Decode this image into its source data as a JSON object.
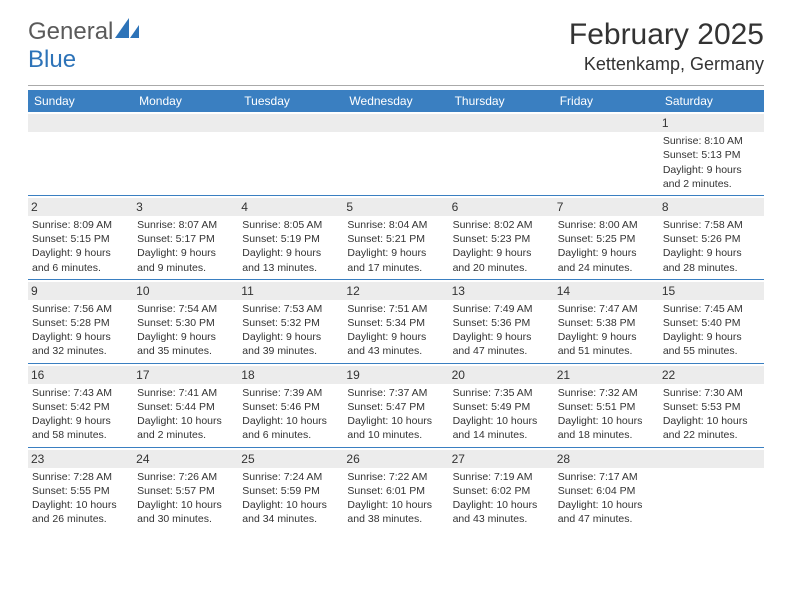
{
  "logo": {
    "text1": "General",
    "text2": "Blue",
    "icon_color": "#2d73b8"
  },
  "header": {
    "month_year": "February 2025",
    "location": "Kettenkamp, Germany"
  },
  "styling": {
    "header_bg": "#3a7fc1",
    "header_text": "#ffffff",
    "daynum_bg": "#ececec",
    "row_divider": "#3a7fc1",
    "body_text": "#333333",
    "font_family": "Arial",
    "th_fontsize": 12,
    "td_fontsize": 10.5,
    "title_fontsize": 30,
    "location_fontsize": 18
  },
  "columns": [
    "Sunday",
    "Monday",
    "Tuesday",
    "Wednesday",
    "Thursday",
    "Friday",
    "Saturday"
  ],
  "weeks": [
    [
      {
        "day": "",
        "sunrise": "",
        "sunset": "",
        "daylight": ""
      },
      {
        "day": "",
        "sunrise": "",
        "sunset": "",
        "daylight": ""
      },
      {
        "day": "",
        "sunrise": "",
        "sunset": "",
        "daylight": ""
      },
      {
        "day": "",
        "sunrise": "",
        "sunset": "",
        "daylight": ""
      },
      {
        "day": "",
        "sunrise": "",
        "sunset": "",
        "daylight": ""
      },
      {
        "day": "",
        "sunrise": "",
        "sunset": "",
        "daylight": ""
      },
      {
        "day": "1",
        "sunrise": "Sunrise: 8:10 AM",
        "sunset": "Sunset: 5:13 PM",
        "daylight": "Daylight: 9 hours and 2 minutes."
      }
    ],
    [
      {
        "day": "2",
        "sunrise": "Sunrise: 8:09 AM",
        "sunset": "Sunset: 5:15 PM",
        "daylight": "Daylight: 9 hours and 6 minutes."
      },
      {
        "day": "3",
        "sunrise": "Sunrise: 8:07 AM",
        "sunset": "Sunset: 5:17 PM",
        "daylight": "Daylight: 9 hours and 9 minutes."
      },
      {
        "day": "4",
        "sunrise": "Sunrise: 8:05 AM",
        "sunset": "Sunset: 5:19 PM",
        "daylight": "Daylight: 9 hours and 13 minutes."
      },
      {
        "day": "5",
        "sunrise": "Sunrise: 8:04 AM",
        "sunset": "Sunset: 5:21 PM",
        "daylight": "Daylight: 9 hours and 17 minutes."
      },
      {
        "day": "6",
        "sunrise": "Sunrise: 8:02 AM",
        "sunset": "Sunset: 5:23 PM",
        "daylight": "Daylight: 9 hours and 20 minutes."
      },
      {
        "day": "7",
        "sunrise": "Sunrise: 8:00 AM",
        "sunset": "Sunset: 5:25 PM",
        "daylight": "Daylight: 9 hours and 24 minutes."
      },
      {
        "day": "8",
        "sunrise": "Sunrise: 7:58 AM",
        "sunset": "Sunset: 5:26 PM",
        "daylight": "Daylight: 9 hours and 28 minutes."
      }
    ],
    [
      {
        "day": "9",
        "sunrise": "Sunrise: 7:56 AM",
        "sunset": "Sunset: 5:28 PM",
        "daylight": "Daylight: 9 hours and 32 minutes."
      },
      {
        "day": "10",
        "sunrise": "Sunrise: 7:54 AM",
        "sunset": "Sunset: 5:30 PM",
        "daylight": "Daylight: 9 hours and 35 minutes."
      },
      {
        "day": "11",
        "sunrise": "Sunrise: 7:53 AM",
        "sunset": "Sunset: 5:32 PM",
        "daylight": "Daylight: 9 hours and 39 minutes."
      },
      {
        "day": "12",
        "sunrise": "Sunrise: 7:51 AM",
        "sunset": "Sunset: 5:34 PM",
        "daylight": "Daylight: 9 hours and 43 minutes."
      },
      {
        "day": "13",
        "sunrise": "Sunrise: 7:49 AM",
        "sunset": "Sunset: 5:36 PM",
        "daylight": "Daylight: 9 hours and 47 minutes."
      },
      {
        "day": "14",
        "sunrise": "Sunrise: 7:47 AM",
        "sunset": "Sunset: 5:38 PM",
        "daylight": "Daylight: 9 hours and 51 minutes."
      },
      {
        "day": "15",
        "sunrise": "Sunrise: 7:45 AM",
        "sunset": "Sunset: 5:40 PM",
        "daylight": "Daylight: 9 hours and 55 minutes."
      }
    ],
    [
      {
        "day": "16",
        "sunrise": "Sunrise: 7:43 AM",
        "sunset": "Sunset: 5:42 PM",
        "daylight": "Daylight: 9 hours and 58 minutes."
      },
      {
        "day": "17",
        "sunrise": "Sunrise: 7:41 AM",
        "sunset": "Sunset: 5:44 PM",
        "daylight": "Daylight: 10 hours and 2 minutes."
      },
      {
        "day": "18",
        "sunrise": "Sunrise: 7:39 AM",
        "sunset": "Sunset: 5:46 PM",
        "daylight": "Daylight: 10 hours and 6 minutes."
      },
      {
        "day": "19",
        "sunrise": "Sunrise: 7:37 AM",
        "sunset": "Sunset: 5:47 PM",
        "daylight": "Daylight: 10 hours and 10 minutes."
      },
      {
        "day": "20",
        "sunrise": "Sunrise: 7:35 AM",
        "sunset": "Sunset: 5:49 PM",
        "daylight": "Daylight: 10 hours and 14 minutes."
      },
      {
        "day": "21",
        "sunrise": "Sunrise: 7:32 AM",
        "sunset": "Sunset: 5:51 PM",
        "daylight": "Daylight: 10 hours and 18 minutes."
      },
      {
        "day": "22",
        "sunrise": "Sunrise: 7:30 AM",
        "sunset": "Sunset: 5:53 PM",
        "daylight": "Daylight: 10 hours and 22 minutes."
      }
    ],
    [
      {
        "day": "23",
        "sunrise": "Sunrise: 7:28 AM",
        "sunset": "Sunset: 5:55 PM",
        "daylight": "Daylight: 10 hours and 26 minutes."
      },
      {
        "day": "24",
        "sunrise": "Sunrise: 7:26 AM",
        "sunset": "Sunset: 5:57 PM",
        "daylight": "Daylight: 10 hours and 30 minutes."
      },
      {
        "day": "25",
        "sunrise": "Sunrise: 7:24 AM",
        "sunset": "Sunset: 5:59 PM",
        "daylight": "Daylight: 10 hours and 34 minutes."
      },
      {
        "day": "26",
        "sunrise": "Sunrise: 7:22 AM",
        "sunset": "Sunset: 6:01 PM",
        "daylight": "Daylight: 10 hours and 38 minutes."
      },
      {
        "day": "27",
        "sunrise": "Sunrise: 7:19 AM",
        "sunset": "Sunset: 6:02 PM",
        "daylight": "Daylight: 10 hours and 43 minutes."
      },
      {
        "day": "28",
        "sunrise": "Sunrise: 7:17 AM",
        "sunset": "Sunset: 6:04 PM",
        "daylight": "Daylight: 10 hours and 47 minutes."
      },
      {
        "day": "",
        "sunrise": "",
        "sunset": "",
        "daylight": ""
      }
    ]
  ]
}
